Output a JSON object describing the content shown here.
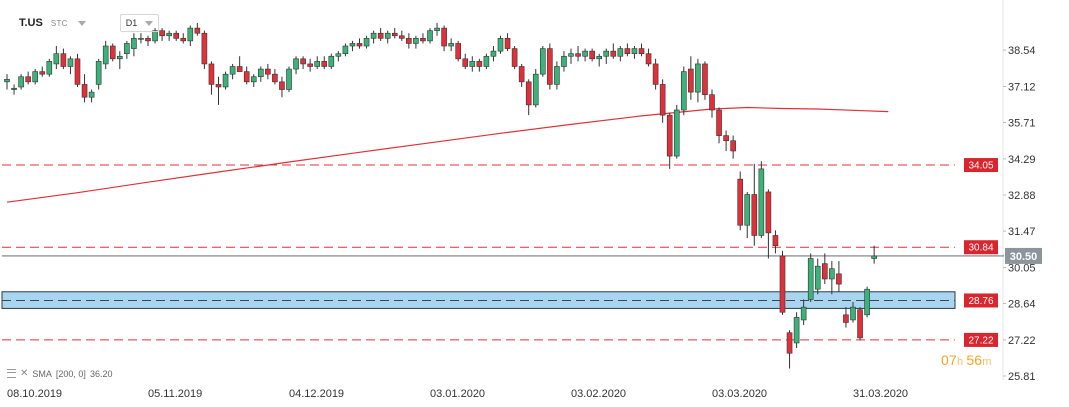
{
  "header": {
    "symbol": "T.US",
    "timezone": "STC",
    "timeframe": "D1"
  },
  "indicator_legend": {
    "text": "SMA",
    "params": "[200, 0]",
    "value": "36.20"
  },
  "countdown": {
    "hours": "07",
    "hours_unit": "h",
    "minutes": "56",
    "minutes_unit": "m"
  },
  "colors": {
    "bull": "#3bb27a",
    "bear": "#e0313a",
    "sma": "#e0313a",
    "level_line": "#e0313a",
    "zone_fill": "#a8d6f0",
    "zone_border": "#2b3a4a",
    "current_price_tag": "#8c959e",
    "level_tag": "#d8252e",
    "axis_text": "#333333"
  },
  "chart_data": {
    "type": "candlestick",
    "instrument": "T.US",
    "timeframe": "D1",
    "ylim": [
      25.5,
      40.0
    ],
    "y_ticks": [
      "38.54",
      "37.12",
      "35.71",
      "34.29",
      "32.88",
      "31.47",
      "30.05",
      "28.64",
      "27.22",
      "25.81"
    ],
    "x_ticks": [
      "08.10.2019",
      "05.11.2019",
      "04.12.2019",
      "03.01.2020",
      "03.02.2020",
      "03.03.2020",
      "31.03.2020"
    ],
    "x_tick_index": [
      0,
      20,
      40,
      60,
      80,
      100,
      120
    ],
    "grid": false,
    "candles": [
      [
        37.3,
        37.6,
        37.0,
        37.4
      ],
      [
        37.0,
        37.2,
        36.8,
        37.05
      ],
      [
        37.1,
        37.6,
        37.0,
        37.5
      ],
      [
        37.5,
        37.7,
        37.2,
        37.3
      ],
      [
        37.3,
        37.8,
        37.2,
        37.7
      ],
      [
        37.7,
        37.9,
        37.5,
        37.6
      ],
      [
        37.6,
        38.2,
        37.5,
        38.1
      ],
      [
        38.0,
        38.7,
        37.8,
        38.4
      ],
      [
        38.4,
        38.6,
        37.8,
        37.9
      ],
      [
        37.9,
        38.3,
        37.6,
        38.2
      ],
      [
        38.2,
        38.4,
        37.1,
        37.2
      ],
      [
        37.2,
        37.6,
        36.5,
        36.7
      ],
      [
        36.7,
        37.0,
        36.5,
        36.9
      ],
      [
        37.2,
        38.2,
        37.0,
        38.1
      ],
      [
        38.0,
        38.9,
        37.8,
        38.7
      ],
      [
        38.7,
        38.8,
        38.1,
        38.2
      ],
      [
        38.2,
        38.5,
        37.8,
        38.3
      ],
      [
        38.4,
        38.9,
        38.2,
        38.8
      ],
      [
        38.6,
        39.2,
        38.3,
        39.0
      ],
      [
        39.0,
        39.2,
        38.8,
        39.0
      ],
      [
        39.0,
        39.1,
        38.7,
        38.9
      ],
      [
        38.9,
        39.4,
        38.8,
        39.3
      ],
      [
        39.3,
        39.4,
        38.9,
        39.1
      ],
      [
        39.1,
        39.3,
        38.9,
        39.2
      ],
      [
        39.2,
        39.3,
        38.9,
        39.0
      ],
      [
        39.0,
        39.2,
        38.8,
        38.9
      ],
      [
        38.9,
        39.5,
        38.7,
        39.4
      ],
      [
        39.4,
        39.6,
        39.1,
        39.2
      ],
      [
        39.2,
        39.3,
        37.8,
        38.0
      ],
      [
        38.0,
        38.1,
        36.8,
        37.2
      ],
      [
        37.2,
        37.5,
        36.4,
        37.1
      ],
      [
        37.1,
        37.7,
        37.0,
        37.6
      ],
      [
        37.6,
        38.0,
        37.4,
        37.9
      ],
      [
        37.9,
        38.3,
        37.8,
        37.7
      ],
      [
        37.7,
        37.9,
        37.2,
        37.3
      ],
      [
        37.3,
        37.6,
        37.1,
        37.5
      ],
      [
        37.5,
        37.9,
        37.3,
        37.8
      ],
      [
        37.8,
        38.0,
        37.4,
        37.6
      ],
      [
        37.6,
        37.8,
        37.2,
        37.3
      ],
      [
        37.3,
        37.5,
        36.7,
        37.0
      ],
      [
        37.0,
        37.9,
        36.9,
        37.8
      ],
      [
        37.8,
        38.3,
        37.6,
        38.2
      ],
      [
        38.2,
        38.3,
        37.8,
        38.0
      ],
      [
        38.0,
        38.2,
        37.7,
        37.9
      ],
      [
        37.9,
        38.3,
        37.8,
        38.1
      ],
      [
        38.1,
        38.3,
        37.8,
        37.9
      ],
      [
        37.9,
        38.4,
        37.8,
        38.3
      ],
      [
        38.3,
        38.5,
        38.1,
        38.4
      ],
      [
        38.4,
        38.8,
        38.3,
        38.7
      ],
      [
        38.7,
        38.9,
        38.5,
        38.8
      ],
      [
        38.8,
        39.0,
        38.6,
        38.7
      ],
      [
        38.7,
        39.1,
        38.6,
        39.0
      ],
      [
        39.0,
        39.3,
        38.8,
        39.2
      ],
      [
        39.2,
        39.4,
        38.9,
        39.0
      ],
      [
        39.0,
        39.3,
        38.8,
        39.2
      ],
      [
        39.2,
        39.4,
        39.0,
        39.1
      ],
      [
        39.1,
        39.3,
        38.9,
        39.0
      ],
      [
        39.0,
        39.2,
        38.6,
        38.8
      ],
      [
        38.8,
        39.1,
        38.6,
        39.0
      ],
      [
        39.0,
        39.2,
        38.8,
        38.9
      ],
      [
        38.9,
        39.4,
        38.8,
        39.3
      ],
      [
        39.3,
        39.6,
        39.1,
        39.4
      ],
      [
        39.4,
        39.5,
        38.5,
        38.7
      ],
      [
        38.7,
        39.0,
        38.5,
        38.8
      ],
      [
        38.8,
        38.9,
        38.1,
        38.2
      ],
      [
        38.2,
        38.4,
        37.8,
        37.9
      ],
      [
        37.9,
        38.3,
        37.7,
        38.1
      ],
      [
        38.1,
        38.2,
        37.7,
        37.9
      ],
      [
        37.9,
        38.4,
        37.8,
        38.3
      ],
      [
        38.3,
        38.7,
        38.1,
        38.5
      ],
      [
        38.5,
        39.1,
        38.4,
        39.0
      ],
      [
        39.0,
        39.2,
        38.5,
        38.6
      ],
      [
        38.6,
        38.7,
        37.8,
        37.9
      ],
      [
        37.9,
        38.0,
        37.1,
        37.3
      ],
      [
        37.3,
        37.4,
        36.0,
        36.4
      ],
      [
        36.4,
        37.8,
        36.3,
        37.6
      ],
      [
        37.6,
        38.7,
        37.5,
        38.6
      ],
      [
        38.6,
        38.8,
        37.0,
        37.2
      ],
      [
        37.2,
        38.1,
        37.0,
        37.9
      ],
      [
        37.9,
        38.5,
        37.7,
        38.3
      ],
      [
        38.3,
        38.6,
        38.0,
        38.4
      ],
      [
        38.4,
        38.7,
        38.1,
        38.3
      ],
      [
        38.3,
        38.6,
        38.1,
        38.5
      ],
      [
        38.5,
        38.6,
        38.1,
        38.2
      ],
      [
        38.2,
        38.4,
        37.9,
        38.3
      ],
      [
        38.3,
        38.6,
        38.0,
        38.5
      ],
      [
        38.5,
        38.8,
        38.2,
        38.3
      ],
      [
        38.3,
        38.7,
        38.1,
        38.6
      ],
      [
        38.6,
        38.8,
        38.3,
        38.4
      ],
      [
        38.4,
        38.7,
        38.2,
        38.6
      ],
      [
        38.6,
        38.8,
        38.3,
        38.4
      ],
      [
        38.4,
        38.6,
        37.9,
        38.0
      ],
      [
        38.0,
        38.2,
        37.0,
        37.2
      ],
      [
        37.2,
        37.4,
        35.7,
        36.0
      ],
      [
        36.0,
        36.1,
        33.9,
        34.4
      ],
      [
        34.4,
        36.4,
        34.3,
        36.2
      ],
      [
        36.2,
        37.9,
        36.0,
        37.7
      ],
      [
        37.8,
        38.3,
        36.6,
        36.9
      ],
      [
        36.9,
        38.2,
        36.5,
        38.0
      ],
      [
        38.0,
        38.1,
        36.6,
        36.8
      ],
      [
        36.8,
        37.0,
        35.9,
        36.2
      ],
      [
        36.2,
        36.3,
        34.9,
        35.2
      ],
      [
        35.2,
        35.4,
        34.6,
        35.0
      ],
      [
        35.0,
        35.2,
        34.3,
        34.6
      ],
      [
        33.5,
        33.8,
        31.5,
        31.7
      ],
      [
        31.7,
        33.0,
        31.2,
        32.9
      ],
      [
        32.9,
        34.1,
        30.9,
        31.3
      ],
      [
        31.3,
        34.2,
        31.2,
        33.9
      ],
      [
        33.0,
        33.1,
        30.4,
        31.4
      ],
      [
        31.3,
        31.5,
        30.6,
        30.9
      ],
      [
        30.5,
        30.7,
        28.2,
        28.3
      ],
      [
        27.5,
        27.6,
        26.1,
        26.7
      ],
      [
        27.1,
        28.3,
        26.9,
        28.1
      ],
      [
        28.0,
        28.8,
        27.8,
        28.5
      ],
      [
        28.8,
        30.6,
        28.7,
        30.4
      ],
      [
        29.2,
        30.4,
        29.0,
        30.1
      ],
      [
        30.2,
        30.6,
        29.4,
        29.6
      ],
      [
        29.6,
        30.3,
        29.0,
        30.0
      ],
      [
        29.8,
        30.3,
        29.1,
        29.4
      ],
      [
        28.2,
        28.5,
        27.7,
        27.9
      ],
      [
        28.0,
        28.7,
        27.9,
        28.5
      ],
      [
        28.4,
        28.5,
        27.2,
        27.3
      ],
      [
        28.2,
        29.3,
        28.1,
        29.2
      ],
      [
        30.4,
        30.9,
        30.2,
        30.5
      ]
    ],
    "sma": {
      "name": "SMA",
      "period": 200,
      "value": 36.2,
      "points": [
        [
          0,
          32.6
        ],
        [
          10,
          32.97
        ],
        [
          20,
          33.38
        ],
        [
          30,
          33.78
        ],
        [
          40,
          34.17
        ],
        [
          50,
          34.55
        ],
        [
          60,
          34.92
        ],
        [
          70,
          35.29
        ],
        [
          80,
          35.64
        ],
        [
          90,
          35.97
        ],
        [
          100,
          36.24
        ],
        [
          105,
          36.3
        ],
        [
          110,
          36.26
        ],
        [
          115,
          36.24
        ],
        [
          120,
          36.19
        ],
        [
          125,
          36.14
        ]
      ]
    },
    "horizontal_levels": [
      {
        "value": 34.05,
        "label": "34.05",
        "style": "dashed"
      },
      {
        "value": 30.84,
        "label": "30.84",
        "style": "dashed"
      },
      {
        "value": 28.76,
        "label": "28.76",
        "style": "dashed"
      },
      {
        "value": 27.22,
        "label": "27.22",
        "style": "dashed"
      }
    ],
    "zone": {
      "from": 28.45,
      "to": 29.1
    },
    "current_price": {
      "value": 30.5,
      "label": "30.50"
    }
  }
}
